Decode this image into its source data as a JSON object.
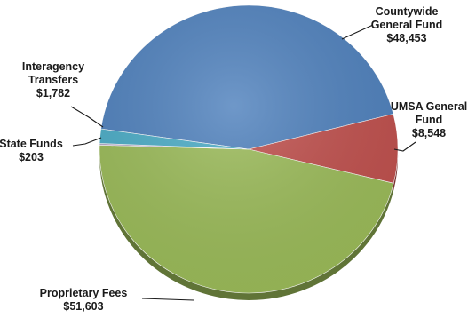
{
  "chart_data": {
    "type": "pie",
    "title": "",
    "slices": [
      {
        "label_lines": [
          "Countywide",
          "General Fund"
        ],
        "value_text": "$48,453",
        "value": 48453,
        "color": "#4F81BD"
      },
      {
        "label_lines": [
          "UMSA General",
          "Fund"
        ],
        "value_text": "$8,548",
        "value": 8548,
        "color": "#C0504D"
      },
      {
        "label_lines": [
          "Proprietary Fees"
        ],
        "value_text": "$51,603",
        "value": 51603,
        "color": "#9BBB59"
      },
      {
        "label_lines": [
          "State Funds"
        ],
        "value_text": "$203",
        "value": 203,
        "color": "#B7A8C9"
      },
      {
        "label_lines": [
          "Interagency",
          "Transfers"
        ],
        "value_text": "$1,782",
        "value": 1782,
        "color": "#4BACC6"
      }
    ]
  }
}
